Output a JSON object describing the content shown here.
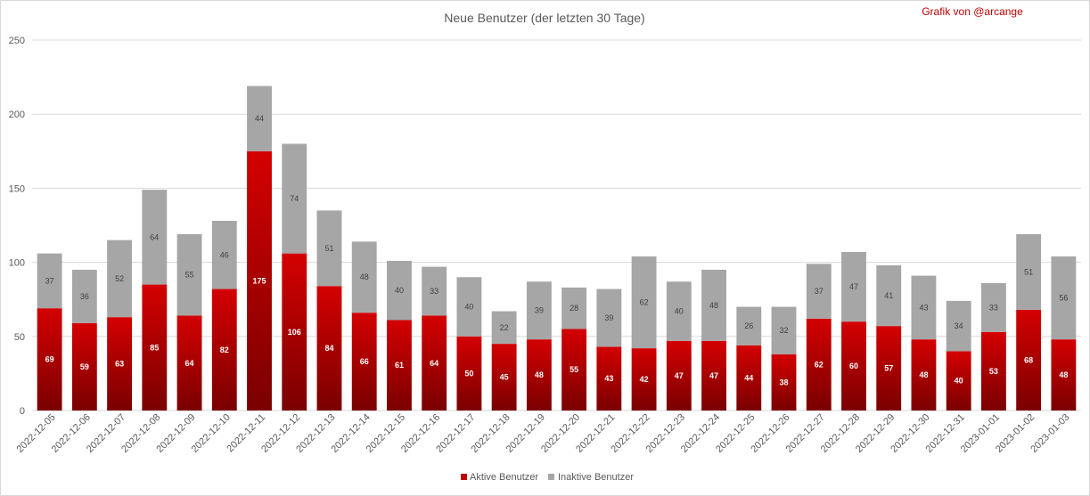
{
  "chart_data": {
    "type": "bar",
    "stacked": true,
    "title": "Neue Benutzer (der letzten 30 Tage)",
    "credit": "Grafik von @arcange",
    "categories": [
      "2022-12-05",
      "2022-12-06",
      "2022-12-07",
      "2022-12-08",
      "2022-12-09",
      "2022-12-10",
      "2022-12-11",
      "2022-12-12",
      "2022-12-13",
      "2022-12-14",
      "2022-12-15",
      "2022-12-16",
      "2022-12-17",
      "2022-12-18",
      "2022-12-19",
      "2022-12-20",
      "2022-12-21",
      "2022-12-22",
      "2022-12-23",
      "2022-12-24",
      "2022-12-25",
      "2022-12-26",
      "2022-12-27",
      "2022-12-28",
      "2022-12-29",
      "2022-12-30",
      "2022-12-31",
      "2023-01-01",
      "2023-01-02",
      "2023-01-03"
    ],
    "series": [
      {
        "name": "Aktive Benutzer",
        "color": "#c00000",
        "values": [
          69,
          59,
          63,
          85,
          64,
          82,
          175,
          106,
          84,
          66,
          61,
          64,
          50,
          45,
          48,
          55,
          43,
          42,
          47,
          47,
          44,
          38,
          62,
          60,
          57,
          48,
          40,
          53,
          68,
          48
        ]
      },
      {
        "name": "Inaktive Benutzer",
        "color": "#a6a6a6",
        "values": [
          37,
          36,
          52,
          64,
          55,
          46,
          44,
          74,
          51,
          48,
          40,
          33,
          40,
          22,
          39,
          28,
          39,
          62,
          40,
          48,
          26,
          32,
          37,
          47,
          41,
          43,
          34,
          33,
          51,
          56
        ]
      }
    ],
    "yticks": [
      0,
      50,
      100,
      150,
      200,
      250
    ],
    "ylim": [
      0,
      250
    ],
    "grid": true,
    "legend_position": "bottom"
  }
}
